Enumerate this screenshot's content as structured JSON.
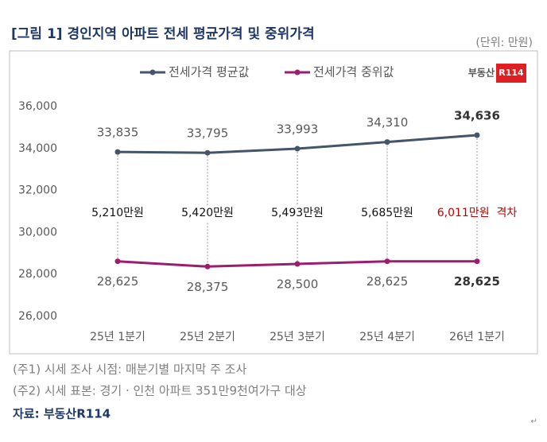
{
  "chart_data": {
    "type": "line",
    "title": "[그림 1] 경인지역 아파트 전세 평균가격 및 중위가격",
    "unit": "(단위: 만원)",
    "logo_text": "부동산",
    "logo_badge": "R114",
    "categories": [
      "25년 1분기",
      "25년 2분기",
      "25년 3분기",
      "25년 4분기",
      "26년 1분기"
    ],
    "series": [
      {
        "name": "전세가격 평균값",
        "color": "#44546a",
        "values": [
          33835,
          33795,
          33993,
          34310,
          34636
        ],
        "value_labels": [
          "33,835",
          "33,795",
          "33,993",
          "34,310",
          "34,636"
        ]
      },
      {
        "name": "전세가격 중위값",
        "color": "#9c1c6e",
        "values": [
          28625,
          28375,
          28500,
          28625,
          28625
        ],
        "value_labels": [
          "28,625",
          "28,375",
          "28,500",
          "28,625",
          "28,625"
        ]
      }
    ],
    "annotations": [
      "5,210만원",
      "5,420만원",
      "5,493만원",
      "5,685만원",
      "6,011만원  격차"
    ],
    "ylim": [
      26000,
      36000
    ],
    "yticks": [
      {
        "value": 26000,
        "label": "26,000"
      },
      {
        "value": 28000,
        "label": "28,000"
      },
      {
        "value": 30000,
        "label": "30,000"
      },
      {
        "value": 32000,
        "label": "32,000"
      },
      {
        "value": 34000,
        "label": "34,000"
      },
      {
        "value": 36000,
        "label": "36,000"
      }
    ],
    "grid": false
  },
  "notes": [
    "(주1) 시세 조사 시점: 매분기별 마지막 주 조사",
    "(주2) 시세 표본: 경기 · 인천 아파트 351만9천여가구 대상"
  ],
  "source": "자료: 부동산R114",
  "paragraph_mark": "↵"
}
